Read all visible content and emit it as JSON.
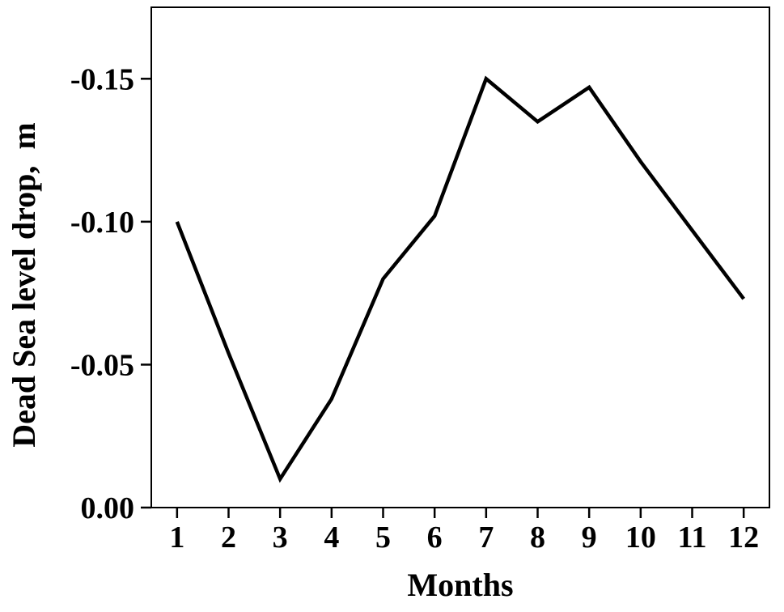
{
  "figure": {
    "background_color": "#ffffff",
    "line_color": "#000000",
    "axis_color": "#000000",
    "text_color": "#000000"
  },
  "chart_data": {
    "type": "line",
    "title": "",
    "xlabel": "Months",
    "ylabel": "Dead Sea level drop,  m",
    "categories": [
      1,
      2,
      3,
      4,
      5,
      6,
      7,
      8,
      9,
      10,
      11,
      12
    ],
    "values": [
      -0.1,
      -0.054,
      -0.01,
      -0.038,
      -0.08,
      -0.102,
      -0.15,
      -0.135,
      -0.147,
      -0.121,
      -0.097,
      -0.073
    ],
    "series_name": "Dead Sea level drop",
    "xlim": [
      0.5,
      12.5
    ],
    "ylim": [
      0,
      -0.175
    ],
    "y_ticks": [
      0,
      -0.05,
      -0.1,
      -0.15
    ],
    "y_tick_labels": [
      "0.00",
      "-0.05",
      "-0.10",
      "-0.15"
    ],
    "x_tick_labels": [
      "1",
      "2",
      "3",
      "4",
      "5",
      "6",
      "7",
      "8",
      "9",
      "10",
      "11",
      "12"
    ],
    "grid": "off",
    "legend": "none",
    "y_axis_inverted_note": "negative values increase upward"
  }
}
